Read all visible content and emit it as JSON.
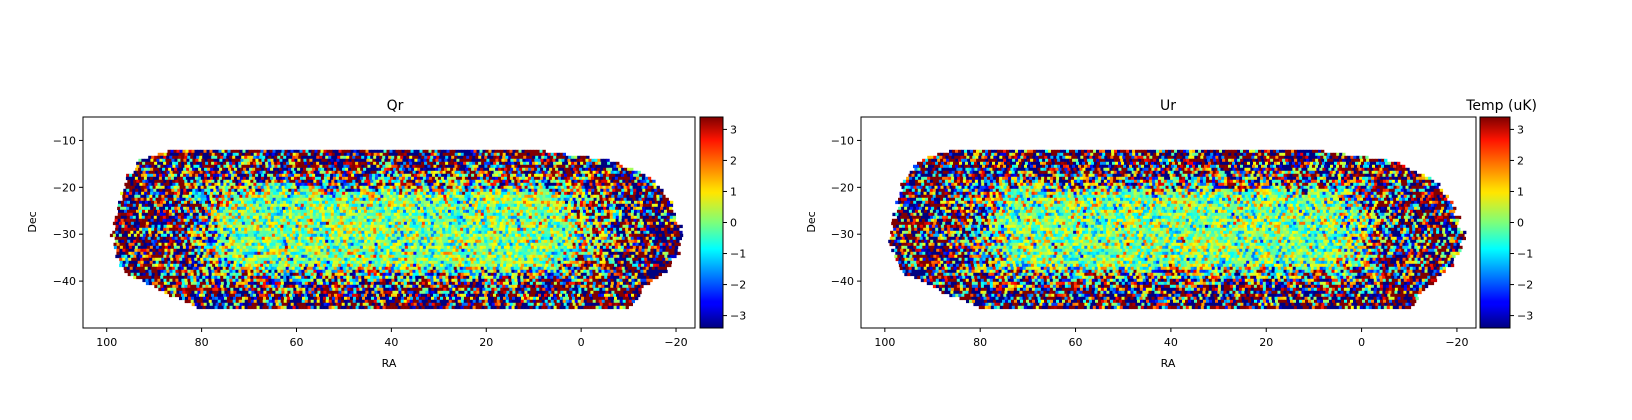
{
  "chart_data": [
    {
      "type": "heatmap",
      "title": "Qr",
      "xlabel": "RA",
      "ylabel": "Dec",
      "xlim": [
        105,
        -24
      ],
      "ylim": [
        -50,
        -5
      ],
      "x_ticks": [
        100,
        80,
        60,
        40,
        20,
        0,
        -20
      ],
      "x_tick_labels": [
        "100",
        "80",
        "60",
        "40",
        "20",
        "0",
        "−20"
      ],
      "y_ticks": [
        -10,
        -20,
        -30,
        -40
      ],
      "y_tick_labels": [
        "−10",
        "−20",
        "−30",
        "−40"
      ],
      "colormap": "jet",
      "color_range": [
        -3.4,
        3.4
      ],
      "colorbar_ticks": [
        3,
        2,
        1,
        0,
        -1,
        -2,
        -3
      ],
      "colorbar_tick_labels": [
        "3",
        "2",
        "1",
        "0",
        "−1",
        "−2",
        "−3"
      ],
      "colorbar_label": "",
      "footprint": {
        "dec_range": [
          -45.5,
          -12
        ],
        "ra_left_edge": [
          [
            -12,
            87
          ],
          [
            -14,
            93
          ],
          [
            -18,
            96
          ],
          [
            -22,
            97
          ],
          [
            -26,
            98
          ],
          [
            -30,
            99
          ],
          [
            -34,
            98
          ],
          [
            -38,
            96
          ],
          [
            -42,
            88
          ],
          [
            -45.5,
            80
          ]
        ],
        "ra_right_edge": [
          [
            -12,
            8
          ],
          [
            -14,
            -6
          ],
          [
            -18,
            -15
          ],
          [
            -22,
            -18
          ],
          [
            -26,
            -20
          ],
          [
            -30,
            -21
          ],
          [
            -34,
            -20
          ],
          [
            -38,
            -17
          ],
          [
            -42,
            -12
          ],
          [
            -45.5,
            -10
          ]
        ]
      }
    },
    {
      "type": "heatmap",
      "title": "Ur",
      "xlabel": "RA",
      "ylabel": "Dec",
      "xlim": [
        105,
        -24
      ],
      "ylim": [
        -50,
        -5
      ],
      "x_ticks": [
        100,
        80,
        60,
        40,
        20,
        0,
        -20
      ],
      "x_tick_labels": [
        "100",
        "80",
        "60",
        "40",
        "20",
        "0",
        "−20"
      ],
      "y_ticks": [
        -10,
        -20,
        -30,
        -40
      ],
      "y_tick_labels": [
        "−10",
        "−20",
        "−30",
        "−40"
      ],
      "colormap": "jet",
      "color_range": [
        -3.4,
        3.4
      ],
      "colorbar_ticks": [
        3,
        2,
        1,
        0,
        -1,
        -2,
        -3
      ],
      "colorbar_tick_labels": [
        "3",
        "2",
        "1",
        "0",
        "−1",
        "−2",
        "−3"
      ],
      "colorbar_label": "Temp  (uK)",
      "footprint": {
        "dec_range": [
          -45.5,
          -12
        ],
        "ra_left_edge": [
          [
            -12,
            87
          ],
          [
            -14,
            93
          ],
          [
            -18,
            96
          ],
          [
            -22,
            97
          ],
          [
            -26,
            98
          ],
          [
            -30,
            99
          ],
          [
            -34,
            98
          ],
          [
            -38,
            96
          ],
          [
            -42,
            88
          ],
          [
            -45.5,
            80
          ]
        ],
        "ra_right_edge": [
          [
            -12,
            8
          ],
          [
            -14,
            -6
          ],
          [
            -18,
            -15
          ],
          [
            -22,
            -18
          ],
          [
            -26,
            -20
          ],
          [
            -30,
            -21
          ],
          [
            -34,
            -20
          ],
          [
            -38,
            -17
          ],
          [
            -42,
            -12
          ],
          [
            -45.5,
            -10
          ]
        ]
      }
    }
  ]
}
